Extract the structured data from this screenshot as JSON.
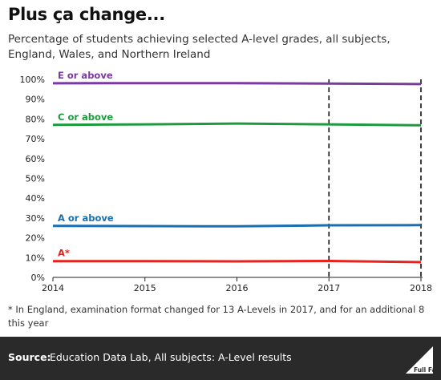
{
  "title": "Plus ça change...",
  "subtitle": "Percentage of students achieving selected A-level grades, all subjects, England, Wales, and Northern Ireland",
  "footnote": "* In England, examination format changed for 13 A-Levels in 2017, and for an additional 8 this year",
  "source": {
    "label": "Source:",
    "text": "Education Data Lab, All subjects: A-Level results"
  },
  "logo_text": "Full Fact",
  "chart_data": {
    "type": "line",
    "x": [
      2014,
      2015,
      2016,
      2017,
      2018
    ],
    "xticks": [
      "2014",
      "2015",
      "2016",
      "2017",
      "2018"
    ],
    "yticks": [
      "0%",
      "10%",
      "20%",
      "30%",
      "40%",
      "50%",
      "60%",
      "70%",
      "80%",
      "90%",
      "100%"
    ],
    "ylim": [
      0,
      100
    ],
    "grid": false,
    "dashed_markers_x": [
      2017,
      2018
    ],
    "series": [
      {
        "name": "E or above",
        "color": "#7a3aa0",
        "values": [
          98.0,
          98.1,
          98.1,
          97.9,
          97.6
        ]
      },
      {
        "name": "C or above",
        "color": "#1e9a3e",
        "values": [
          77.0,
          77.3,
          77.7,
          77.3,
          76.8
        ]
      },
      {
        "name": "A or above",
        "color": "#1a6fb0",
        "values": [
          26.0,
          25.9,
          25.8,
          26.3,
          26.4
        ]
      },
      {
        "name": "A*",
        "color": "#e8231e",
        "values": [
          8.2,
          8.2,
          8.1,
          8.3,
          7.7
        ]
      }
    ]
  }
}
